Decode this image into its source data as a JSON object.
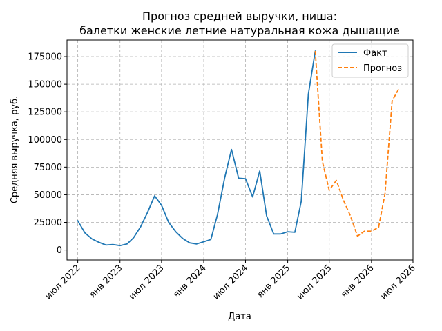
{
  "chart_data": {
    "type": "line",
    "title_line1": "Прогноз средней выручки, ниша:",
    "title_line2": "балетки женские летние натуральная кожа дышащие",
    "xlabel": "Дата",
    "ylabel": "Средняя выручка, руб.",
    "xlim": [
      "2022-05-15",
      "2026-07-01"
    ],
    "ylim": [
      -9000,
      190000
    ],
    "x_ticks": [
      {
        "date": "2022-07-01",
        "label": "июл 2022"
      },
      {
        "date": "2023-01-01",
        "label": "янв 2023"
      },
      {
        "date": "2023-07-01",
        "label": "июл 2023"
      },
      {
        "date": "2024-01-01",
        "label": "янв 2024"
      },
      {
        "date": "2024-07-01",
        "label": "июл 2024"
      },
      {
        "date": "2025-01-01",
        "label": "янв 2025"
      },
      {
        "date": "2025-07-01",
        "label": "июл 2025"
      },
      {
        "date": "2026-01-01",
        "label": "янв 2026"
      },
      {
        "date": "2026-07-01",
        "label": "июл 2026"
      }
    ],
    "y_ticks": [
      {
        "value": 0,
        "label": "0"
      },
      {
        "value": 25000,
        "label": "25000"
      },
      {
        "value": 50000,
        "label": "50000"
      },
      {
        "value": 75000,
        "label": "75000"
      },
      {
        "value": 100000,
        "label": "100000"
      },
      {
        "value": 125000,
        "label": "125000"
      },
      {
        "value": 150000,
        "label": "150000"
      },
      {
        "value": 175000,
        "label": "175000"
      }
    ],
    "grid": true,
    "legend_position": "top-right",
    "series": [
      {
        "name": "Факт",
        "color": "#1f77b4",
        "style": "solid",
        "points": [
          {
            "x": "2022-07-01",
            "y": 26500
          },
          {
            "x": "2022-08-01",
            "y": 15500
          },
          {
            "x": "2022-09-01",
            "y": 10000
          },
          {
            "x": "2022-10-01",
            "y": 7000
          },
          {
            "x": "2022-11-01",
            "y": 4500
          },
          {
            "x": "2022-12-01",
            "y": 5000
          },
          {
            "x": "2023-01-01",
            "y": 4000
          },
          {
            "x": "2023-02-01",
            "y": 5500
          },
          {
            "x": "2023-03-01",
            "y": 11000
          },
          {
            "x": "2023-04-01",
            "y": 21000
          },
          {
            "x": "2023-05-01",
            "y": 34000
          },
          {
            "x": "2023-06-01",
            "y": 49000
          },
          {
            "x": "2023-07-01",
            "y": 40500
          },
          {
            "x": "2023-08-01",
            "y": 25000
          },
          {
            "x": "2023-09-01",
            "y": 16500
          },
          {
            "x": "2023-10-01",
            "y": 10500
          },
          {
            "x": "2023-11-01",
            "y": 6500
          },
          {
            "x": "2023-12-01",
            "y": 5500
          },
          {
            "x": "2024-01-01",
            "y": 7500
          },
          {
            "x": "2024-02-01",
            "y": 9500
          },
          {
            "x": "2024-03-01",
            "y": 32000
          },
          {
            "x": "2024-04-01",
            "y": 65000
          },
          {
            "x": "2024-05-01",
            "y": 91000
          },
          {
            "x": "2024-06-01",
            "y": 65000
          },
          {
            "x": "2024-07-01",
            "y": 64500
          },
          {
            "x": "2024-08-01",
            "y": 48000
          },
          {
            "x": "2024-09-01",
            "y": 71500
          },
          {
            "x": "2024-10-01",
            "y": 31000
          },
          {
            "x": "2024-11-01",
            "y": 14500
          },
          {
            "x": "2024-12-01",
            "y": 14500
          },
          {
            "x": "2025-01-01",
            "y": 16500
          },
          {
            "x": "2025-02-01",
            "y": 16000
          },
          {
            "x": "2025-03-01",
            "y": 44000
          },
          {
            "x": "2025-04-01",
            "y": 141000
          },
          {
            "x": "2025-05-01",
            "y": 180000
          }
        ]
      },
      {
        "name": "Прогноз",
        "color": "#ff7f0e",
        "style": "dashed",
        "points": [
          {
            "x": "2025-05-01",
            "y": 180000
          },
          {
            "x": "2025-06-01",
            "y": 80000
          },
          {
            "x": "2025-07-01",
            "y": 54000
          },
          {
            "x": "2025-08-01",
            "y": 63000
          },
          {
            "x": "2025-09-01",
            "y": 45000
          },
          {
            "x": "2025-10-01",
            "y": 31000
          },
          {
            "x": "2025-11-01",
            "y": 12500
          },
          {
            "x": "2025-12-01",
            "y": 17000
          },
          {
            "x": "2026-01-01",
            "y": 17000
          },
          {
            "x": "2026-02-01",
            "y": 20500
          },
          {
            "x": "2026-03-01",
            "y": 51000
          },
          {
            "x": "2026-04-01",
            "y": 135000
          },
          {
            "x": "2026-05-01",
            "y": 146000
          }
        ]
      }
    ]
  }
}
